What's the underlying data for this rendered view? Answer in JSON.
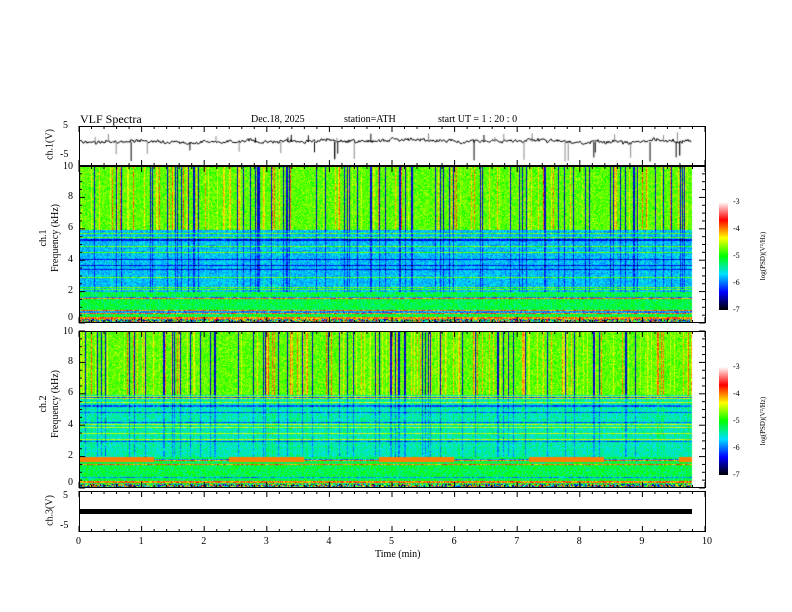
{
  "header": {
    "title": "VLF  Spectra",
    "date": "Dec.18, 2025",
    "station": "station=ATH",
    "start": "start  UT  =   1 : 20 : 0"
  },
  "panels": {
    "ch1": {
      "ylabel": "ch.1(V)",
      "ticks": [
        "5",
        "-5"
      ]
    },
    "spec1": {
      "ylabel_ch": "ch.1",
      "ylabel": "Frequency (kHz)",
      "ticks": [
        "10",
        "8",
        "6",
        "4",
        "2",
        "0"
      ]
    },
    "spec2": {
      "ylabel_ch": "ch.2",
      "ylabel": "Frequency (kHz)",
      "ticks": [
        "10",
        "8",
        "6",
        "4",
        "2",
        "0"
      ]
    },
    "ch3": {
      "ylabel": "ch.3(V)",
      "ticks": [
        "5",
        "-5"
      ]
    }
  },
  "colorbar": {
    "label": "log(PSD)(V²/Hz)",
    "ticks": [
      "-3",
      "-4",
      "-5",
      "-6",
      "-7"
    ],
    "colors": [
      "#000000",
      "#0000ff",
      "#00e0ff",
      "#00ff00",
      "#ffff00",
      "#ff0000",
      "#ffffff"
    ]
  },
  "xaxis": {
    "label": "Time  (min)",
    "ticks": [
      "0",
      "1",
      "2",
      "3",
      "4",
      "5",
      "6",
      "7",
      "8",
      "9",
      "10"
    ]
  },
  "chart_data": {
    "type": "heatmap",
    "title": "VLF Spectra",
    "xlabel": "Time (min)",
    "xlim": [
      0,
      10
    ],
    "data_end_min": 9.8,
    "spectrograms": [
      {
        "channel": "ch.1",
        "ylabel": "Frequency (kHz)",
        "ylim": [
          0,
          10
        ]
      },
      {
        "channel": "ch.2",
        "ylabel": "Frequency (kHz)",
        "ylim": [
          0,
          10
        ]
      }
    ],
    "waveforms": [
      {
        "channel": "ch.1",
        "ylabel": "ch.1(V)",
        "ylim": [
          -5,
          5
        ],
        "mean": 0
      },
      {
        "channel": "ch.3",
        "ylabel": "ch.3(V)",
        "ylim": [
          -5,
          5
        ],
        "mean": 0
      }
    ],
    "color_scale": {
      "label": "log(PSD)(V^2/Hz)",
      "range": [
        -7,
        -3
      ]
    }
  }
}
